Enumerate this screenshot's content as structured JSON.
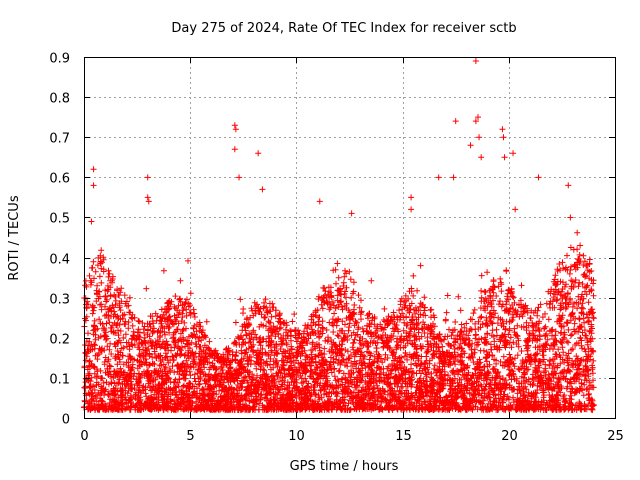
{
  "chart_data": {
    "type": "scatter",
    "title": "Day 275 of 2024, Rate Of TEC Index for receiver sctb",
    "xlabel": "GPS time / hours",
    "ylabel": "ROTI / TECUs",
    "xlim": [
      0,
      25
    ],
    "ylim": [
      0,
      0.9
    ],
    "xticks": [
      0,
      5,
      10,
      15,
      20,
      25
    ],
    "yticks": [
      0,
      0.1,
      0.2,
      0.3,
      0.4,
      0.5,
      0.6,
      0.7,
      0.8,
      0.9
    ],
    "grid": true,
    "marker": "+",
    "color": "#ff0000",
    "x_data_range": [
      0,
      24
    ],
    "typical_y_range": [
      0.02,
      0.35
    ],
    "outliers": [
      {
        "x": 0.45,
        "y": 0.62
      },
      {
        "x": 0.45,
        "y": 0.58
      },
      {
        "x": 0.35,
        "y": 0.49
      },
      {
        "x": 3.0,
        "y": 0.6
      },
      {
        "x": 3.0,
        "y": 0.55
      },
      {
        "x": 3.05,
        "y": 0.54
      },
      {
        "x": 7.1,
        "y": 0.73
      },
      {
        "x": 7.15,
        "y": 0.72
      },
      {
        "x": 7.1,
        "y": 0.67
      },
      {
        "x": 7.3,
        "y": 0.6
      },
      {
        "x": 8.2,
        "y": 0.66
      },
      {
        "x": 8.4,
        "y": 0.57
      },
      {
        "x": 11.1,
        "y": 0.54
      },
      {
        "x": 12.6,
        "y": 0.51
      },
      {
        "x": 15.4,
        "y": 0.55
      },
      {
        "x": 15.4,
        "y": 0.52
      },
      {
        "x": 16.7,
        "y": 0.6
      },
      {
        "x": 17.5,
        "y": 0.74
      },
      {
        "x": 17.4,
        "y": 0.6
      },
      {
        "x": 18.2,
        "y": 0.68
      },
      {
        "x": 18.45,
        "y": 0.89
      },
      {
        "x": 18.45,
        "y": 0.74
      },
      {
        "x": 18.55,
        "y": 0.75
      },
      {
        "x": 18.6,
        "y": 0.7
      },
      {
        "x": 18.7,
        "y": 0.65
      },
      {
        "x": 19.7,
        "y": 0.72
      },
      {
        "x": 19.75,
        "y": 0.7
      },
      {
        "x": 19.8,
        "y": 0.65
      },
      {
        "x": 20.2,
        "y": 0.66
      },
      {
        "x": 20.3,
        "y": 0.52
      },
      {
        "x": 21.4,
        "y": 0.6
      },
      {
        "x": 22.8,
        "y": 0.58
      },
      {
        "x": 22.9,
        "y": 0.5
      }
    ]
  }
}
